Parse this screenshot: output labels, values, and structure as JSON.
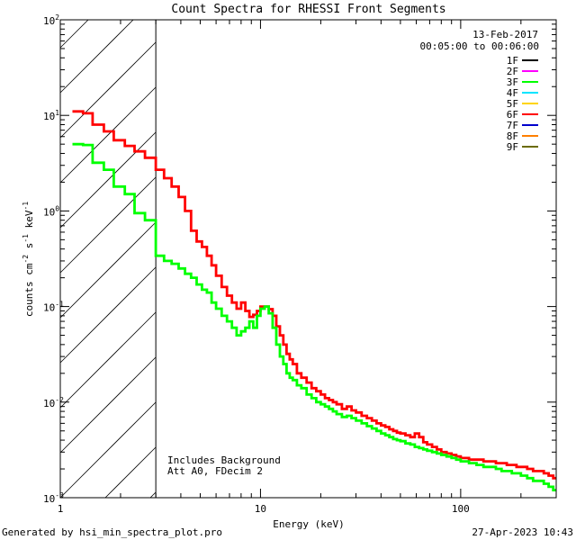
{
  "chart_data": {
    "type": "line",
    "title": "Count Spectra for RHESSI Front Segments",
    "xlabel": "Energy (keV)",
    "ylabel": "counts cm",
    "ylabel_parts": [
      "counts cm",
      "-2",
      " s",
      "-1",
      " keV",
      "-1"
    ],
    "xscale": "log",
    "yscale": "log",
    "xlim": [
      1,
      300
    ],
    "ylim": [
      0.001,
      100
    ],
    "x_ticks": [
      {
        "value": 1,
        "label": "1"
      },
      {
        "value": 10,
        "label": "10"
      },
      {
        "value": 100,
        "label": "100"
      }
    ],
    "y_ticks": [
      {
        "value": 0.001,
        "base": "10",
        "exp": "-3"
      },
      {
        "value": 0.01,
        "base": "10",
        "exp": "-2"
      },
      {
        "value": 0.1,
        "base": "10",
        "exp": "-1"
      },
      {
        "value": 1,
        "base": "10",
        "exp": "0"
      },
      {
        "value": 10,
        "base": "10",
        "exp": "1"
      },
      {
        "value": 100,
        "base": "10",
        "exp": "2"
      }
    ],
    "date": "13-Feb-2017",
    "time_range": "00:05:00 to 00:06:00",
    "legend": [
      {
        "label": "1F",
        "color": "#000000"
      },
      {
        "label": "2F",
        "color": "#ff00ff"
      },
      {
        "label": "3F",
        "color": "#00ff00"
      },
      {
        "label": "4F",
        "color": "#00e5ff"
      },
      {
        "label": "5F",
        "color": "#ffd400"
      },
      {
        "label": "6F",
        "color": "#ff0000"
      },
      {
        "label": "7F",
        "color": "#0000cc"
      },
      {
        "label": "8F",
        "color": "#ff7f00"
      },
      {
        "label": "9F",
        "color": "#6b6b00"
      }
    ],
    "hatch_region_end": 3,
    "annotations": [
      "Includes Background",
      "Att A0, FDecim 2"
    ],
    "series": [
      {
        "name": "6F",
        "color": "#ff0000",
        "points": [
          [
            1.15,
            11
          ],
          [
            1.3,
            10.5
          ],
          [
            1.45,
            8
          ],
          [
            1.65,
            6.8
          ],
          [
            1.85,
            5.5
          ],
          [
            2.1,
            4.8
          ],
          [
            2.35,
            4.2
          ],
          [
            2.65,
            3.6
          ],
          [
            3.0,
            2.7
          ],
          [
            3.3,
            2.2
          ],
          [
            3.6,
            1.8
          ],
          [
            3.9,
            1.4
          ],
          [
            4.2,
            1.0
          ],
          [
            4.5,
            0.62
          ],
          [
            4.8,
            0.48
          ],
          [
            5.1,
            0.42
          ],
          [
            5.4,
            0.34
          ],
          [
            5.7,
            0.27
          ],
          [
            6.0,
            0.21
          ],
          [
            6.4,
            0.16
          ],
          [
            6.8,
            0.13
          ],
          [
            7.2,
            0.11
          ],
          [
            7.6,
            0.095
          ],
          [
            8.0,
            0.11
          ],
          [
            8.4,
            0.09
          ],
          [
            8.8,
            0.078
          ],
          [
            9.2,
            0.082
          ],
          [
            9.6,
            0.09
          ],
          [
            10.0,
            0.1
          ],
          [
            10.5,
            0.1
          ],
          [
            11.0,
            0.094
          ],
          [
            11.5,
            0.08
          ],
          [
            12.0,
            0.062
          ],
          [
            12.5,
            0.05
          ],
          [
            13.0,
            0.04
          ],
          [
            13.5,
            0.032
          ],
          [
            14.0,
            0.028
          ],
          [
            14.5,
            0.025
          ],
          [
            15.2,
            0.02
          ],
          [
            16,
            0.018
          ],
          [
            17,
            0.016
          ],
          [
            18,
            0.014
          ],
          [
            19,
            0.013
          ],
          [
            20,
            0.012
          ],
          [
            21,
            0.011
          ],
          [
            22,
            0.0105
          ],
          [
            23,
            0.01
          ],
          [
            24,
            0.0095
          ],
          [
            25.5,
            0.0085
          ],
          [
            27,
            0.009
          ],
          [
            28.5,
            0.0082
          ],
          [
            30,
            0.0078
          ],
          [
            32,
            0.0072
          ],
          [
            34,
            0.0068
          ],
          [
            36,
            0.0064
          ],
          [
            38,
            0.006
          ],
          [
            40,
            0.0057
          ],
          [
            42,
            0.0055
          ],
          [
            44,
            0.0052
          ],
          [
            46,
            0.005
          ],
          [
            48,
            0.0048
          ],
          [
            50,
            0.0047
          ],
          [
            53,
            0.0045
          ],
          [
            56,
            0.0043
          ],
          [
            59,
            0.0047
          ],
          [
            62,
            0.0043
          ],
          [
            65,
            0.0038
          ],
          [
            68,
            0.0036
          ],
          [
            72,
            0.0034
          ],
          [
            76,
            0.0032
          ],
          [
            80,
            0.003
          ],
          [
            85,
            0.0029
          ],
          [
            90,
            0.0028
          ],
          [
            95,
            0.0027
          ],
          [
            100,
            0.0026
          ],
          [
            110,
            0.0025
          ],
          [
            120,
            0.0025
          ],
          [
            130,
            0.0024
          ],
          [
            140,
            0.0024
          ],
          [
            150,
            0.0023
          ],
          [
            160,
            0.0023
          ],
          [
            170,
            0.0022
          ],
          [
            180,
            0.0022
          ],
          [
            190,
            0.0021
          ],
          [
            200,
            0.0021
          ],
          [
            215,
            0.002
          ],
          [
            230,
            0.0019
          ],
          [
            245,
            0.0019
          ],
          [
            260,
            0.0018
          ],
          [
            275,
            0.0017
          ],
          [
            290,
            0.0016
          ],
          [
            300,
            0.0016
          ]
        ]
      },
      {
        "name": "3F",
        "color": "#00ff00",
        "points": [
          [
            1.15,
            5
          ],
          [
            1.3,
            4.9
          ],
          [
            1.45,
            3.2
          ],
          [
            1.65,
            2.7
          ],
          [
            1.85,
            1.8
          ],
          [
            2.1,
            1.5
          ],
          [
            2.35,
            0.95
          ],
          [
            2.65,
            0.8
          ],
          [
            3.0,
            0.34
          ],
          [
            3.3,
            0.3
          ],
          [
            3.6,
            0.28
          ],
          [
            3.9,
            0.25
          ],
          [
            4.2,
            0.22
          ],
          [
            4.5,
            0.2
          ],
          [
            4.8,
            0.17
          ],
          [
            5.1,
            0.15
          ],
          [
            5.4,
            0.14
          ],
          [
            5.7,
            0.11
          ],
          [
            6.0,
            0.095
          ],
          [
            6.4,
            0.08
          ],
          [
            6.8,
            0.07
          ],
          [
            7.2,
            0.06
          ],
          [
            7.6,
            0.05
          ],
          [
            8.0,
            0.055
          ],
          [
            8.4,
            0.06
          ],
          [
            8.8,
            0.07
          ],
          [
            9.2,
            0.06
          ],
          [
            9.6,
            0.08
          ],
          [
            10.0,
            0.095
          ],
          [
            10.5,
            0.1
          ],
          [
            11.0,
            0.085
          ],
          [
            11.5,
            0.06
          ],
          [
            12.0,
            0.04
          ],
          [
            12.5,
            0.03
          ],
          [
            13.0,
            0.025
          ],
          [
            13.5,
            0.02
          ],
          [
            14.0,
            0.018
          ],
          [
            14.5,
            0.017
          ],
          [
            15.2,
            0.015
          ],
          [
            16,
            0.014
          ],
          [
            17,
            0.012
          ],
          [
            18,
            0.011
          ],
          [
            19,
            0.01
          ],
          [
            20,
            0.0095
          ],
          [
            21,
            0.009
          ],
          [
            22,
            0.0085
          ],
          [
            23,
            0.008
          ],
          [
            24,
            0.0075
          ],
          [
            25.5,
            0.007
          ],
          [
            27,
            0.0072
          ],
          [
            28.5,
            0.0068
          ],
          [
            30,
            0.0064
          ],
          [
            32,
            0.006
          ],
          [
            34,
            0.0056
          ],
          [
            36,
            0.0053
          ],
          [
            38,
            0.005
          ],
          [
            40,
            0.0047
          ],
          [
            42,
            0.0045
          ],
          [
            44,
            0.0043
          ],
          [
            46,
            0.0041
          ],
          [
            48,
            0.004
          ],
          [
            50,
            0.0039
          ],
          [
            53,
            0.0037
          ],
          [
            56,
            0.0036
          ],
          [
            59,
            0.0034
          ],
          [
            62,
            0.0033
          ],
          [
            65,
            0.0032
          ],
          [
            68,
            0.0031
          ],
          [
            72,
            0.003
          ],
          [
            76,
            0.0029
          ],
          [
            80,
            0.0028
          ],
          [
            85,
            0.0027
          ],
          [
            90,
            0.0026
          ],
          [
            95,
            0.0025
          ],
          [
            100,
            0.0024
          ],
          [
            110,
            0.0023
          ],
          [
            120,
            0.0022
          ],
          [
            130,
            0.0021
          ],
          [
            140,
            0.0021
          ],
          [
            150,
            0.002
          ],
          [
            160,
            0.0019
          ],
          [
            170,
            0.0019
          ],
          [
            180,
            0.0018
          ],
          [
            190,
            0.0018
          ],
          [
            200,
            0.0017
          ],
          [
            215,
            0.0016
          ],
          [
            230,
            0.0015
          ],
          [
            245,
            0.0015
          ],
          [
            260,
            0.0014
          ],
          [
            275,
            0.0013
          ],
          [
            290,
            0.0012
          ],
          [
            300,
            0.0012
          ]
        ]
      }
    ]
  },
  "footer": {
    "generated_by": "Generated by hsi_min_spectra_plot.pro",
    "timestamp": "27-Apr-2023 10:43"
  }
}
